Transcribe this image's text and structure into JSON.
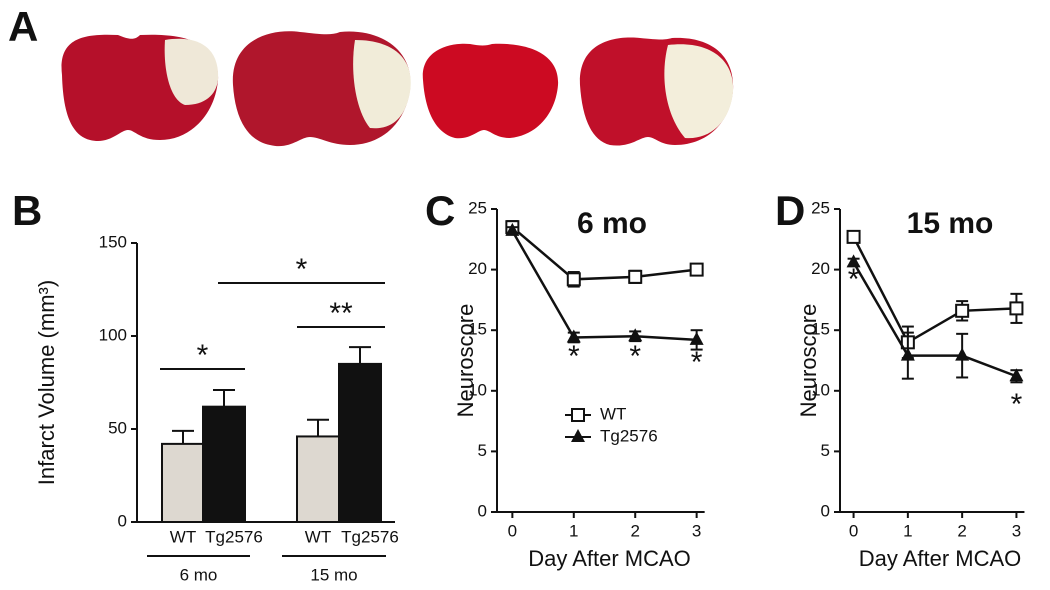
{
  "panel_labels": [
    "A",
    "B",
    "C",
    "D"
  ],
  "chart_data": [
    {
      "type": "bar",
      "ylabel": "Infarct Volume (mm³)",
      "categories": [
        "WT",
        "Tg2576",
        "WT",
        "Tg2576"
      ],
      "groups": [
        "6 mo",
        "15 mo"
      ],
      "values": [
        42,
        62,
        46,
        85
      ],
      "errors": [
        7,
        9,
        9,
        9
      ],
      "colors": [
        "#ddd8d0",
        "#111111"
      ],
      "ylim": [
        0,
        150
      ],
      "yticks": [
        0,
        50,
        100,
        150
      ],
      "annotations": [
        "*",
        "**",
        "*"
      ]
    },
    {
      "type": "line",
      "title": "6 mo",
      "xlabel": "Day After MCAO",
      "ylabel": "Neuroscore",
      "x": [
        0,
        1,
        2,
        3
      ],
      "xlim": [
        -0.25,
        3.25
      ],
      "xticks": [
        0,
        1,
        2,
        3
      ],
      "ylim": [
        0,
        25
      ],
      "yticks": [
        0,
        5,
        10,
        15,
        20,
        25
      ],
      "legend": true,
      "series": [
        {
          "name": "WT",
          "marker": "square",
          "color": "#111111",
          "values": [
            23.5,
            19.2,
            19.4,
            20.0
          ],
          "errors": [
            0.5,
            0.6,
            0.5,
            0.4
          ]
        },
        {
          "name": "Tg2576",
          "marker": "triangle",
          "color": "#111111",
          "values": [
            23.2,
            14.4,
            14.5,
            14.2
          ],
          "errors": [
            0.3,
            0.4,
            0.4,
            0.8
          ]
        }
      ],
      "annotations": [
        "*",
        "*",
        "*"
      ]
    },
    {
      "type": "line",
      "title": "15 mo",
      "xlabel": "Day After MCAO",
      "ylabel": "Neuroscore",
      "x": [
        0,
        1,
        2,
        3
      ],
      "xlim": [
        -0.25,
        3.25
      ],
      "xticks": [
        0,
        1,
        2,
        3
      ],
      "ylim": [
        0,
        25
      ],
      "yticks": [
        0,
        5,
        10,
        15,
        20,
        25
      ],
      "legend": false,
      "series": [
        {
          "marker": "square",
          "color": "#111111",
          "values": [
            22.7,
            14.0,
            16.6,
            16.8
          ],
          "errors": [
            0.3,
            1.3,
            0.8,
            1.2
          ]
        },
        {
          "marker": "triangle",
          "color": "#111111",
          "values": [
            20.6,
            12.9,
            12.9,
            11.2
          ],
          "errors": [
            0.3,
            1.9,
            1.8,
            0.5
          ]
        }
      ],
      "annotations": [
        "*",
        "*"
      ]
    }
  ]
}
